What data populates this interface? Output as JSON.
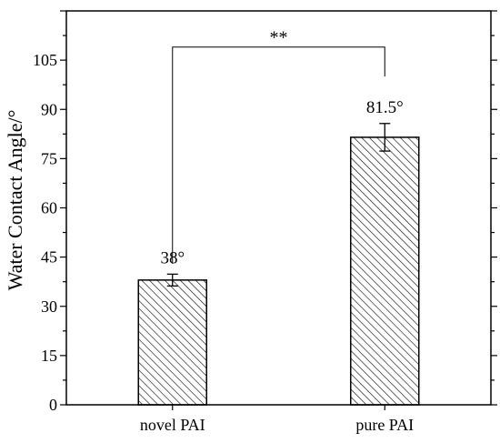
{
  "chart_data": {
    "type": "bar",
    "categories": [
      "novel PAI",
      "pure PAI"
    ],
    "values": [
      38,
      81.5
    ],
    "errors": [
      1.8,
      4.2
    ],
    "value_labels": [
      "38°",
      "81.5°"
    ],
    "xlabel": "",
    "ylabel": "Water Contact Angle/°",
    "ylim": [
      0,
      120
    ],
    "yticks": [
      0,
      15,
      30,
      45,
      60,
      75,
      90,
      105
    ],
    "ytick_labels": [
      "0",
      "15",
      "30",
      "45",
      "60",
      "75",
      "90",
      "105"
    ],
    "significance": {
      "label": "**",
      "between": [
        0,
        1
      ],
      "y": 109,
      "left_drop_to": 43,
      "right_drop_to": 100
    },
    "fill_pattern": "diagonal-hatch",
    "grid": false,
    "legend": "none",
    "colors": {
      "bar_stroke": "#000000",
      "hatch": "#000000",
      "background": "#ffffff"
    }
  }
}
